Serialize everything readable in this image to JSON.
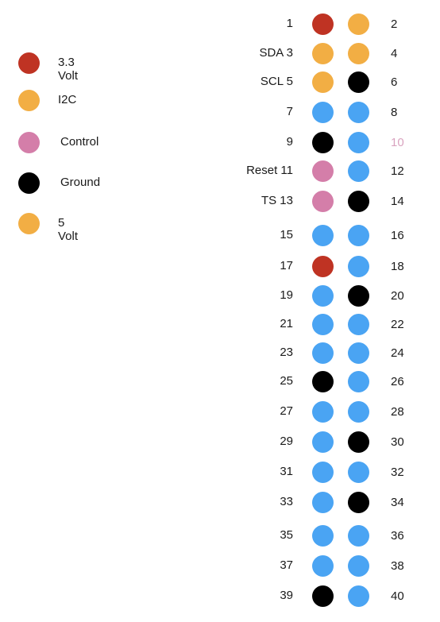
{
  "colors": {
    "v33": "#bf3323",
    "i2c": "#f2ae44",
    "control": "#d47ea9",
    "ground": "#000000",
    "v5": "#f2ae44",
    "gpio": "#4aa4f3"
  },
  "legend": [
    {
      "label": "3.3 Volt",
      "type": "v33"
    },
    {
      "label": "I2C",
      "type": "i2c"
    },
    {
      "label": "Control",
      "type": "control"
    },
    {
      "label": "Ground",
      "type": "ground"
    },
    {
      "label": "5 Volt",
      "type": "v5"
    }
  ],
  "pins": [
    {
      "row": 1,
      "left_label": "1",
      "left_type": "v33",
      "right_label": "2",
      "right_type": "v5"
    },
    {
      "row": 2,
      "left_label": "SDA  3",
      "left_type": "i2c",
      "right_label": "4",
      "right_type": "v5"
    },
    {
      "row": 3,
      "left_label": "SCL  5",
      "left_type": "i2c",
      "right_label": "6",
      "right_type": "ground"
    },
    {
      "row": 4,
      "left_label": "7",
      "left_type": "gpio",
      "right_label": "8",
      "right_type": "gpio"
    },
    {
      "row": 5,
      "left_label": "9",
      "left_type": "ground",
      "right_label": "10",
      "right_type": "gpio",
      "right_label_color": "#d9a3bf"
    },
    {
      "row": 6,
      "left_label": "Reset 11",
      "left_type": "control",
      "right_label": "12",
      "right_type": "gpio"
    },
    {
      "row": 7,
      "left_label": "TS 13",
      "left_type": "control",
      "right_label": "14",
      "right_type": "ground"
    },
    {
      "row": 8,
      "left_label": "15",
      "left_type": "gpio",
      "right_label": "16",
      "right_type": "gpio"
    },
    {
      "row": 9,
      "left_label": "17",
      "left_type": "v33",
      "right_label": "18",
      "right_type": "gpio"
    },
    {
      "row": 10,
      "left_label": "19",
      "left_type": "gpio",
      "right_label": "20",
      "right_type": "ground"
    },
    {
      "row": 11,
      "left_label": "21",
      "left_type": "gpio",
      "right_label": "22",
      "right_type": "gpio"
    },
    {
      "row": 12,
      "left_label": "23",
      "left_type": "gpio",
      "right_label": "24",
      "right_type": "gpio"
    },
    {
      "row": 13,
      "left_label": "25",
      "left_type": "ground",
      "right_label": "26",
      "right_type": "gpio"
    },
    {
      "row": 14,
      "left_label": "27",
      "left_type": "gpio",
      "right_label": "28",
      "right_type": "gpio"
    },
    {
      "row": 15,
      "left_label": "29",
      "left_type": "gpio",
      "right_label": "30",
      "right_type": "ground"
    },
    {
      "row": 16,
      "left_label": "31",
      "left_type": "gpio",
      "right_label": "32",
      "right_type": "gpio"
    },
    {
      "row": 17,
      "left_label": "33",
      "left_type": "gpio",
      "right_label": "34",
      "right_type": "ground"
    },
    {
      "row": 18,
      "left_label": "35",
      "left_type": "gpio",
      "right_label": "36",
      "right_type": "gpio"
    },
    {
      "row": 19,
      "left_label": "37",
      "left_type": "gpio",
      "right_label": "38",
      "right_type": "gpio"
    },
    {
      "row": 20,
      "left_label": "39",
      "left_type": "ground",
      "right_label": "40",
      "right_type": "gpio"
    }
  ]
}
